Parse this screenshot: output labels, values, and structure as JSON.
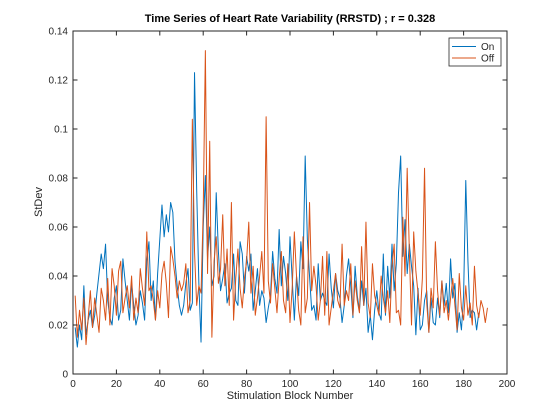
{
  "chart_data": {
    "type": "line",
    "title": "Time Series of Heart Rate Variability (RRSTD) ; r = 0.328",
    "xlabel": "Stimulation Block Number",
    "ylabel": "StDev",
    "xlim": [
      0,
      200
    ],
    "ylim": [
      0,
      0.14
    ],
    "xticks": [
      "0",
      "20",
      "40",
      "60",
      "80",
      "100",
      "120",
      "140",
      "160",
      "180",
      "200"
    ],
    "yticks": [
      "0",
      "0.02",
      "0.04",
      "0.06",
      "0.08",
      "0.1",
      "0.12",
      "0.14"
    ],
    "grid": false,
    "legend_position": "top-right",
    "x_start": 1,
    "series": [
      {
        "name": "On",
        "color": "#0072bd",
        "values": [
          0.019,
          0.011,
          0.02,
          0.014,
          0.036,
          0.016,
          0.022,
          0.026,
          0.019,
          0.024,
          0.033,
          0.041,
          0.049,
          0.043,
          0.053,
          0.03,
          0.023,
          0.02,
          0.031,
          0.036,
          0.022,
          0.026,
          0.047,
          0.038,
          0.03,
          0.022,
          0.037,
          0.028,
          0.02,
          0.024,
          0.034,
          0.029,
          0.022,
          0.046,
          0.054,
          0.03,
          0.038,
          0.022,
          0.041,
          0.055,
          0.069,
          0.056,
          0.065,
          0.058,
          0.07,
          0.066,
          0.046,
          0.036,
          0.028,
          0.024,
          0.028,
          0.037,
          0.043,
          0.026,
          0.029,
          0.123,
          0.075,
          0.037,
          0.013,
          0.06,
          0.081,
          0.047,
          0.06,
          0.036,
          0.04,
          0.074,
          0.05,
          0.034,
          0.039,
          0.045,
          0.029,
          0.033,
          0.035,
          0.049,
          0.03,
          0.028,
          0.054,
          0.049,
          0.033,
          0.048,
          0.042,
          0.049,
          0.026,
          0.034,
          0.043,
          0.028,
          0.034,
          0.031,
          0.021,
          0.027,
          0.032,
          0.05,
          0.039,
          0.033,
          0.059,
          0.036,
          0.048,
          0.041,
          0.03,
          0.056,
          0.039,
          0.022,
          0.04,
          0.032,
          0.054,
          0.043,
          0.089,
          0.055,
          0.04,
          0.026,
          0.028,
          0.022,
          0.045,
          0.03,
          0.033,
          0.03,
          0.028,
          0.049,
          0.035,
          0.027,
          0.041,
          0.034,
          0.031,
          0.021,
          0.028,
          0.04,
          0.047,
          0.036,
          0.023,
          0.044,
          0.032,
          0.026,
          0.038,
          0.028,
          0.035,
          0.017,
          0.024,
          0.014,
          0.026,
          0.034,
          0.025,
          0.022,
          0.049,
          0.024,
          0.044,
          0.031,
          0.053,
          0.034,
          0.045,
          0.074,
          0.089,
          0.048,
          0.063,
          0.041,
          0.053,
          0.044,
          0.036,
          0.016,
          0.035,
          0.018,
          0.02,
          0.03,
          0.034,
          0.017,
          0.031,
          0.021,
          0.02,
          0.031,
          0.023,
          0.038,
          0.028,
          0.037,
          0.025,
          0.047,
          0.031,
          0.037,
          0.017,
          0.025,
          0.018,
          0.032,
          0.079,
          0.046,
          0.023,
          0.026,
          0.025,
          0.018,
          0.025
        ]
      },
      {
        "name": "Off",
        "color": "#d95319",
        "values": [
          0.032,
          0.015,
          0.026,
          0.018,
          0.031,
          0.012,
          0.023,
          0.034,
          0.019,
          0.031,
          0.024,
          0.017,
          0.035,
          0.03,
          0.022,
          0.039,
          0.02,
          0.043,
          0.036,
          0.024,
          0.042,
          0.046,
          0.025,
          0.031,
          0.036,
          0.027,
          0.04,
          0.022,
          0.031,
          0.025,
          0.043,
          0.035,
          0.028,
          0.058,
          0.034,
          0.036,
          0.03,
          0.022,
          0.034,
          0.027,
          0.041,
          0.046,
          0.037,
          0.023,
          0.052,
          0.047,
          0.04,
          0.031,
          0.038,
          0.034,
          0.037,
          0.045,
          0.025,
          0.03,
          0.104,
          0.05,
          0.028,
          0.036,
          0.033,
          0.066,
          0.132,
          0.041,
          0.095,
          0.015,
          0.046,
          0.056,
          0.037,
          0.043,
          0.065,
          0.036,
          0.051,
          0.028,
          0.07,
          0.022,
          0.039,
          0.051,
          0.035,
          0.027,
          0.039,
          0.046,
          0.062,
          0.033,
          0.044,
          0.024,
          0.031,
          0.04,
          0.05,
          0.033,
          0.105,
          0.038,
          0.029,
          0.045,
          0.035,
          0.025,
          0.039,
          0.05,
          0.03,
          0.025,
          0.045,
          0.021,
          0.035,
          0.058,
          0.04,
          0.026,
          0.02,
          0.056,
          0.025,
          0.031,
          0.07,
          0.034,
          0.044,
          0.036,
          0.022,
          0.03,
          0.048,
          0.024,
          0.05,
          0.02,
          0.027,
          0.034,
          0.041,
          0.03,
          0.027,
          0.053,
          0.028,
          0.034,
          0.03,
          0.045,
          0.024,
          0.038,
          0.03,
          0.025,
          0.052,
          0.028,
          0.062,
          0.029,
          0.023,
          0.045,
          0.032,
          0.028,
          0.024,
          0.04,
          0.031,
          0.025,
          0.034,
          0.021,
          0.044,
          0.053,
          0.025,
          0.026,
          0.02,
          0.064,
          0.04,
          0.084,
          0.05,
          0.02,
          0.058,
          0.042,
          0.033,
          0.024,
          0.039,
          0.084,
          0.029,
          0.017,
          0.035,
          0.027,
          0.054,
          0.034,
          0.024,
          0.038,
          0.025,
          0.03,
          0.022,
          0.031,
          0.039,
          0.028,
          0.018,
          0.041,
          0.027,
          0.022,
          0.036,
          0.024,
          0.029,
          0.02,
          0.044,
          0.028,
          0.023,
          0.03,
          0.027,
          0.021,
          0.027
        ]
      }
    ]
  }
}
